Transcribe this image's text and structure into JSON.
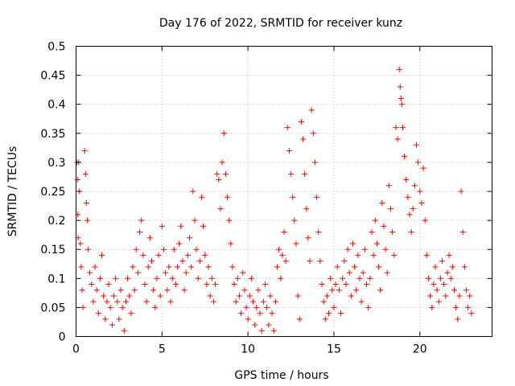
{
  "chart_data": {
    "type": "scatter",
    "title": "Day 176 of 2022, SRMTID for receiver kunz",
    "xlabel": "GPS time / hours",
    "ylabel": "SRMTID / TECUs",
    "xlim": [
      0,
      24.2
    ],
    "ylim": [
      0,
      0.5
    ],
    "x_ticks": [
      0,
      5,
      10,
      15,
      20
    ],
    "x_tick_labels": [
      "0",
      "5",
      "10",
      "15",
      "20"
    ],
    "y_ticks": [
      0,
      0.05,
      0.1,
      0.15,
      0.2,
      0.25,
      0.3,
      0.35,
      0.4,
      0.45,
      0.5
    ],
    "y_tick_labels": [
      "0",
      "0.05",
      "0.1",
      "0.15",
      "0.2",
      "0.25",
      "0.3",
      "0.35",
      "0.4",
      "0.45",
      "0.5"
    ],
    "grid": true,
    "marker": "+",
    "color": "#ff0000",
    "series": [
      {
        "name": "SRMTID",
        "points": [
          [
            0.05,
            0.3
          ],
          [
            0.08,
            0.27
          ],
          [
            0.1,
            0.21
          ],
          [
            0.12,
            0.17
          ],
          [
            0.15,
            0.3
          ],
          [
            0.2,
            0.25
          ],
          [
            0.25,
            0.16
          ],
          [
            0.3,
            0.12
          ],
          [
            0.35,
            0.08
          ],
          [
            0.4,
            0.05
          ],
          [
            0.5,
            0.32
          ],
          [
            0.55,
            0.28
          ],
          [
            0.6,
            0.23
          ],
          [
            0.65,
            0.2
          ],
          [
            0.7,
            0.15
          ],
          [
            0.8,
            0.11
          ],
          [
            0.9,
            0.09
          ],
          [
            1.0,
            0.06
          ],
          [
            1.1,
            0.12
          ],
          [
            1.2,
            0.08
          ],
          [
            1.3,
            0.04
          ],
          [
            1.4,
            0.1
          ],
          [
            1.5,
            0.14
          ],
          [
            1.6,
            0.07
          ],
          [
            1.7,
            0.03
          ],
          [
            1.8,
            0.06
          ],
          [
            1.9,
            0.09
          ],
          [
            2.0,
            0.05
          ],
          [
            2.1,
            0.02
          ],
          [
            2.2,
            0.07
          ],
          [
            2.3,
            0.1
          ],
          [
            2.4,
            0.06
          ],
          [
            2.5,
            0.03
          ],
          [
            2.6,
            0.08
          ],
          [
            2.7,
            0.05
          ],
          [
            2.8,
            0.01
          ],
          [
            2.9,
            0.06
          ],
          [
            3.0,
            0.1
          ],
          [
            3.1,
            0.07
          ],
          [
            3.2,
            0.04
          ],
          [
            3.3,
            0.12
          ],
          [
            3.4,
            0.08
          ],
          [
            3.5,
            0.15
          ],
          [
            3.6,
            0.11
          ],
          [
            3.7,
            0.18
          ],
          [
            3.8,
            0.2
          ],
          [
            3.9,
            0.14
          ],
          [
            4.0,
            0.09
          ],
          [
            4.1,
            0.06
          ],
          [
            4.2,
            0.12
          ],
          [
            4.3,
            0.17
          ],
          [
            4.4,
            0.13
          ],
          [
            4.5,
            0.08
          ],
          [
            4.6,
            0.05
          ],
          [
            4.7,
            0.1
          ],
          [
            4.8,
            0.14
          ],
          [
            4.9,
            0.07
          ],
          [
            5.0,
            0.19
          ],
          [
            5.1,
            0.15
          ],
          [
            5.2,
            0.11
          ],
          [
            5.3,
            0.08
          ],
          [
            5.4,
            0.12
          ],
          [
            5.5,
            0.06
          ],
          [
            5.6,
            0.1
          ],
          [
            5.7,
            0.15
          ],
          [
            5.8,
            0.09
          ],
          [
            5.9,
            0.12
          ],
          [
            6.0,
            0.16
          ],
          [
            6.1,
            0.19
          ],
          [
            6.2,
            0.13
          ],
          [
            6.3,
            0.08
          ],
          [
            6.4,
            0.11
          ],
          [
            6.5,
            0.14
          ],
          [
            6.6,
            0.17
          ],
          [
            6.7,
            0.12
          ],
          [
            6.8,
            0.25
          ],
          [
            6.9,
            0.2
          ],
          [
            7.0,
            0.15
          ],
          [
            7.1,
            0.1
          ],
          [
            7.2,
            0.13
          ],
          [
            7.3,
            0.24
          ],
          [
            7.4,
            0.19
          ],
          [
            7.5,
            0.14
          ],
          [
            7.6,
            0.09
          ],
          [
            7.7,
            0.12
          ],
          [
            7.8,
            0.07
          ],
          [
            7.9,
            0.1
          ],
          [
            8.0,
            0.06
          ],
          [
            8.1,
            0.09
          ],
          [
            8.2,
            0.28
          ],
          [
            8.3,
            0.27
          ],
          [
            8.4,
            0.22
          ],
          [
            8.5,
            0.3
          ],
          [
            8.6,
            0.35
          ],
          [
            8.7,
            0.28
          ],
          [
            8.8,
            0.24
          ],
          [
            8.9,
            0.2
          ],
          [
            9.0,
            0.16
          ],
          [
            9.1,
            0.12
          ],
          [
            9.2,
            0.09
          ],
          [
            9.3,
            0.06
          ],
          [
            9.4,
            0.1
          ],
          [
            9.5,
            0.07
          ],
          [
            9.6,
            0.04
          ],
          [
            9.7,
            0.11
          ],
          [
            9.8,
            0.08
          ],
          [
            9.9,
            0.05
          ],
          [
            10.0,
            0.03
          ],
          [
            10.1,
            0.07
          ],
          [
            10.2,
            0.1
          ],
          [
            10.3,
            0.06
          ],
          [
            10.4,
            0.02
          ],
          [
            10.5,
            0.05
          ],
          [
            10.6,
            0.08
          ],
          [
            10.7,
            0.04
          ],
          [
            10.8,
            0.01
          ],
          [
            10.9,
            0.06
          ],
          [
            11.0,
            0.09
          ],
          [
            11.1,
            0.05
          ],
          [
            11.2,
            0.02
          ],
          [
            11.3,
            0.07
          ],
          [
            11.4,
            0.04
          ],
          [
            11.5,
            0.01
          ],
          [
            11.6,
            0.06
          ],
          [
            11.7,
            0.12
          ],
          [
            11.8,
            0.15
          ],
          [
            11.9,
            0.1
          ],
          [
            12.0,
            0.14
          ],
          [
            12.1,
            0.18
          ],
          [
            12.2,
            0.13
          ],
          [
            12.3,
            0.36
          ],
          [
            12.4,
            0.32
          ],
          [
            12.5,
            0.28
          ],
          [
            12.6,
            0.24
          ],
          [
            12.7,
            0.2
          ],
          [
            12.8,
            0.16
          ],
          [
            12.9,
            0.07
          ],
          [
            13.0,
            0.03
          ],
          [
            13.1,
            0.37
          ],
          [
            13.2,
            0.34
          ],
          [
            13.3,
            0.28
          ],
          [
            13.4,
            0.22
          ],
          [
            13.5,
            0.17
          ],
          [
            13.6,
            0.13
          ],
          [
            13.7,
            0.39
          ],
          [
            13.8,
            0.35
          ],
          [
            13.9,
            0.3
          ],
          [
            14.0,
            0.24
          ],
          [
            14.1,
            0.18
          ],
          [
            14.2,
            0.13
          ],
          [
            14.3,
            0.09
          ],
          [
            14.4,
            0.06
          ],
          [
            14.5,
            0.03
          ],
          [
            14.6,
            0.07
          ],
          [
            14.7,
            0.04
          ],
          [
            14.8,
            0.1
          ],
          [
            14.9,
            0.08
          ],
          [
            15.0,
            0.05
          ],
          [
            15.1,
            0.09
          ],
          [
            15.2,
            0.12
          ],
          [
            15.3,
            0.08
          ],
          [
            15.4,
            0.04
          ],
          [
            15.5,
            0.1
          ],
          [
            15.6,
            0.13
          ],
          [
            15.7,
            0.09
          ],
          [
            15.8,
            0.15
          ],
          [
            15.9,
            0.11
          ],
          [
            16.0,
            0.07
          ],
          [
            16.1,
            0.16
          ],
          [
            16.2,
            0.12
          ],
          [
            16.3,
            0.08
          ],
          [
            16.4,
            0.14
          ],
          [
            16.5,
            0.1
          ],
          [
            16.6,
            0.06
          ],
          [
            16.7,
            0.11
          ],
          [
            16.8,
            0.15
          ],
          [
            16.9,
            0.09
          ],
          [
            17.0,
            0.05
          ],
          [
            17.1,
            0.1
          ],
          [
            17.2,
            0.18
          ],
          [
            17.3,
            0.14
          ],
          [
            17.4,
            0.2
          ],
          [
            17.5,
            0.16
          ],
          [
            17.6,
            0.12
          ],
          [
            17.7,
            0.08
          ],
          [
            17.8,
            0.23
          ],
          [
            17.9,
            0.19
          ],
          [
            18.0,
            0.15
          ],
          [
            18.1,
            0.11
          ],
          [
            18.2,
            0.26
          ],
          [
            18.3,
            0.22
          ],
          [
            18.4,
            0.18
          ],
          [
            18.5,
            0.14
          ],
          [
            18.6,
            0.36
          ],
          [
            18.7,
            0.34
          ],
          [
            18.8,
            0.46
          ],
          [
            18.85,
            0.43
          ],
          [
            18.9,
            0.41
          ],
          [
            18.95,
            0.4
          ],
          [
            19.0,
            0.36
          ],
          [
            19.1,
            0.31
          ],
          [
            19.2,
            0.27
          ],
          [
            19.3,
            0.24
          ],
          [
            19.4,
            0.21
          ],
          [
            19.5,
            0.18
          ],
          [
            19.6,
            0.22
          ],
          [
            19.7,
            0.26
          ],
          [
            19.8,
            0.33
          ],
          [
            19.9,
            0.3
          ],
          [
            20.0,
            0.25
          ],
          [
            20.1,
            0.23
          ],
          [
            20.2,
            0.29
          ],
          [
            20.3,
            0.2
          ],
          [
            20.4,
            0.14
          ],
          [
            20.5,
            0.1
          ],
          [
            20.6,
            0.07
          ],
          [
            20.7,
            0.05
          ],
          [
            20.8,
            0.09
          ],
          [
            20.9,
            0.12
          ],
          [
            21.0,
            0.08
          ],
          [
            21.1,
            0.06
          ],
          [
            21.2,
            0.1
          ],
          [
            21.3,
            0.13
          ],
          [
            21.4,
            0.09
          ],
          [
            21.5,
            0.07
          ],
          [
            21.6,
            0.11
          ],
          [
            21.7,
            0.14
          ],
          [
            21.8,
            0.1
          ],
          [
            21.9,
            0.12
          ],
          [
            22.0,
            0.08
          ],
          [
            22.1,
            0.05
          ],
          [
            22.2,
            0.03
          ],
          [
            22.3,
            0.07
          ],
          [
            22.4,
            0.25
          ],
          [
            22.5,
            0.18
          ],
          [
            22.6,
            0.12
          ],
          [
            22.7,
            0.08
          ],
          [
            22.8,
            0.05
          ],
          [
            22.9,
            0.07
          ],
          [
            23.0,
            0.04
          ]
        ]
      }
    ]
  }
}
